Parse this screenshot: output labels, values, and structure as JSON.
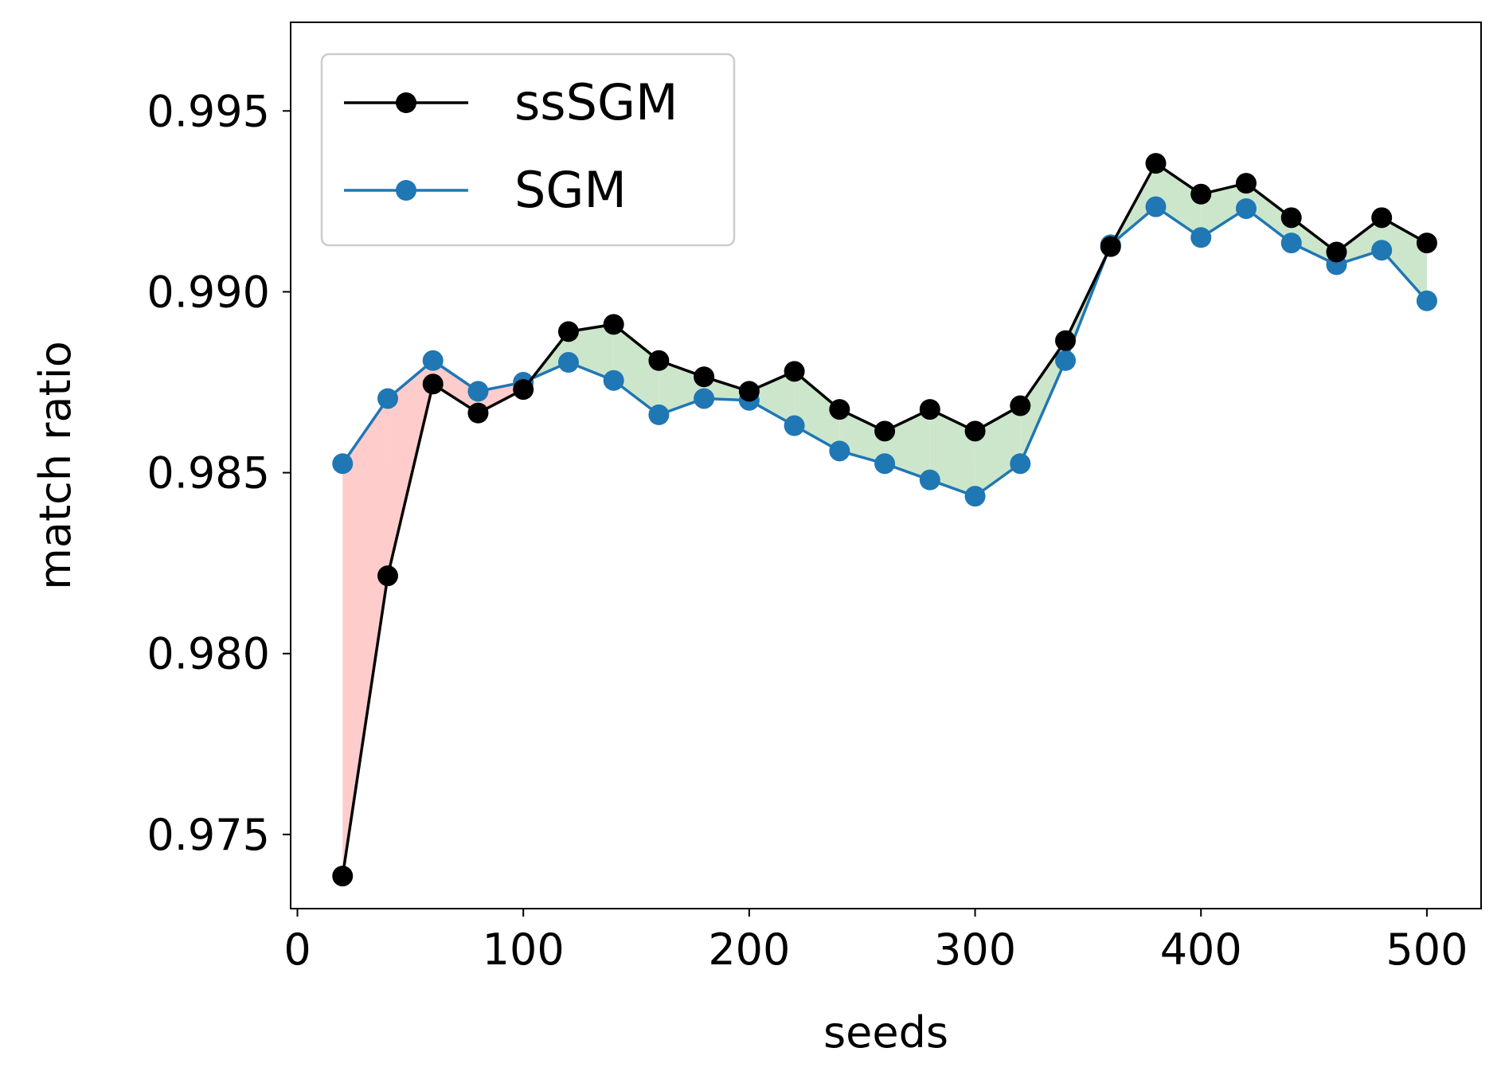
{
  "chart_data": {
    "type": "line",
    "title": "",
    "xlabel": "seeds",
    "ylabel": "match ratio",
    "xlim": [
      -3,
      524
    ],
    "ylim": [
      0.97295,
      0.99745
    ],
    "xticks": [
      0,
      100,
      200,
      300,
      400,
      500
    ],
    "xtick_labels": [
      "0",
      "100",
      "200",
      "300",
      "400",
      "500"
    ],
    "yticks": [
      0.975,
      0.98,
      0.985,
      0.99,
      0.995
    ],
    "ytick_labels": [
      "0.975",
      "0.980",
      "0.985",
      "0.990",
      "0.995"
    ],
    "grid": false,
    "legend_position": "top-left",
    "x": [
      20,
      40,
      60,
      80,
      100,
      120,
      140,
      160,
      180,
      200,
      220,
      240,
      260,
      280,
      300,
      320,
      340,
      360,
      380,
      400,
      420,
      440,
      460,
      480,
      500
    ],
    "series": [
      {
        "name": "ssSGM",
        "color": "#000000",
        "values": [
          0.97385,
          0.98215,
          0.98745,
          0.98665,
          0.9873,
          0.9889,
          0.9891,
          0.9881,
          0.98765,
          0.98725,
          0.9878,
          0.98675,
          0.98615,
          0.98675,
          0.98615,
          0.98685,
          0.98865,
          0.99125,
          0.99355,
          0.9927,
          0.993,
          0.99205,
          0.9911,
          0.99205,
          0.99135
        ]
      },
      {
        "name": "SGM",
        "color": "#1f77b4",
        "values": [
          0.98525,
          0.98705,
          0.9881,
          0.98725,
          0.9875,
          0.98805,
          0.98755,
          0.9866,
          0.98705,
          0.987,
          0.9863,
          0.9856,
          0.98525,
          0.9848,
          0.98435,
          0.98525,
          0.9881,
          0.9913,
          0.99235,
          0.9915,
          0.9923,
          0.99135,
          0.99075,
          0.99115,
          0.98975
        ]
      }
    ],
    "fill_between": {
      "above_color": "#cce6cc",
      "below_color": "#ffcccc"
    }
  }
}
